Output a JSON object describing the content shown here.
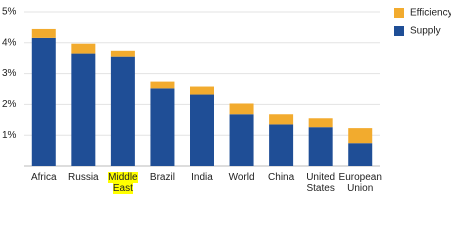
{
  "chart_data": {
    "type": "stacked_bar",
    "categories": [
      "Africa",
      "Russia",
      "Middle East",
      "Brazil",
      "India",
      "World",
      "China",
      "United States",
      "European Union"
    ],
    "series": [
      {
        "name": "Supply",
        "color": "#1f4e96",
        "values": [
          4.16,
          3.65,
          3.55,
          2.52,
          2.32,
          1.68,
          1.35,
          1.26,
          0.74
        ]
      },
      {
        "name": "Efficiency",
        "color": "#f2ab2e",
        "values": [
          0.29,
          0.32,
          0.19,
          0.22,
          0.26,
          0.35,
          0.33,
          0.29,
          0.49
        ]
      }
    ],
    "ylim": [
      0,
      5
    ],
    "yticks": [
      {
        "value": 1,
        "label": "1%"
      },
      {
        "value": 2,
        "label": "2%"
      },
      {
        "value": 3,
        "label": "3%"
      },
      {
        "value": 4,
        "label": "4%"
      },
      {
        "value": 5,
        "label": "5%"
      }
    ],
    "grid": true,
    "legend": "top-right"
  }
}
